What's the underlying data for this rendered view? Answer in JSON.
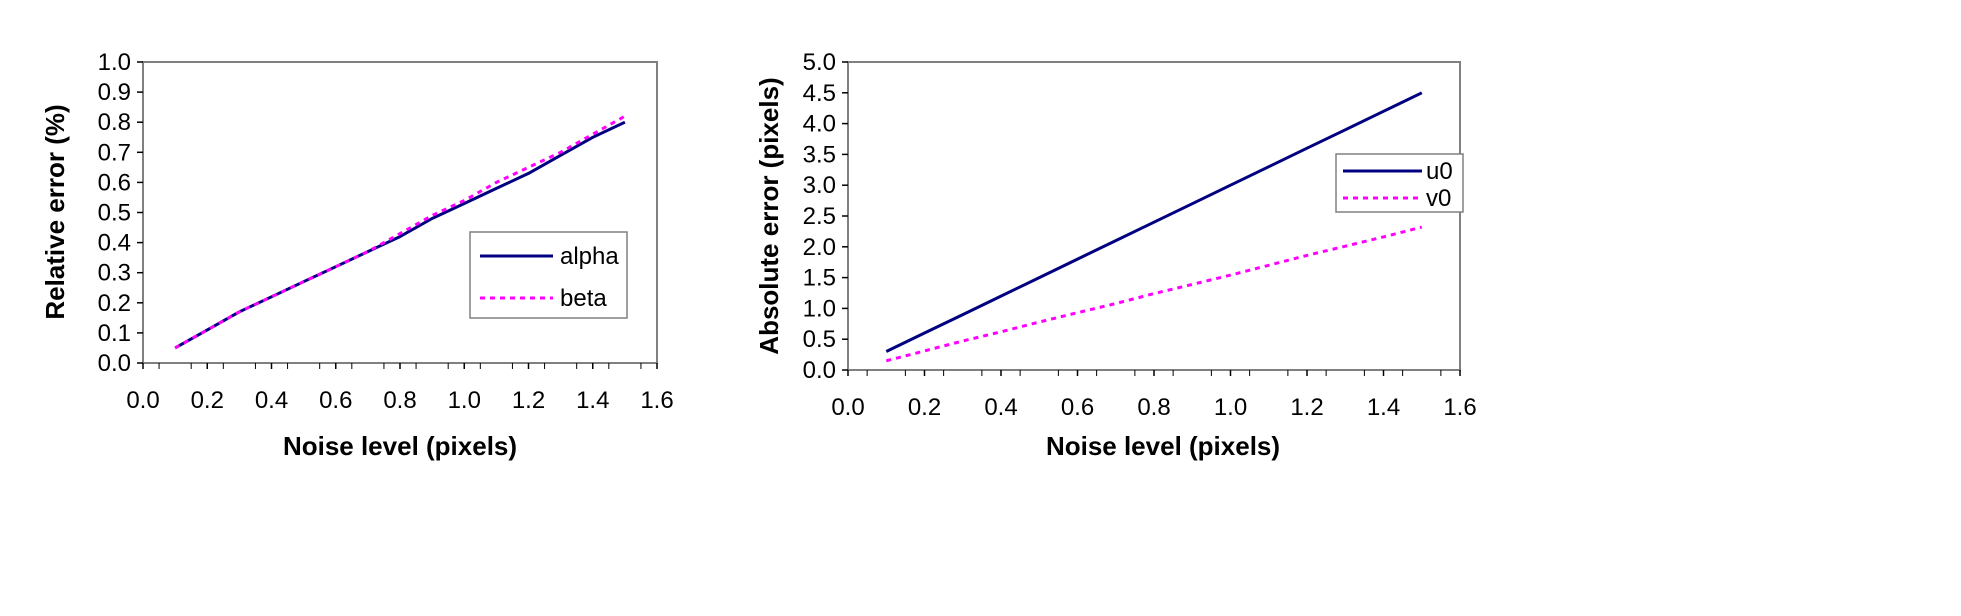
{
  "chart_data": [
    {
      "type": "line",
      "title": "",
      "xlabel": "Noise level (pixels)",
      "ylabel": "Relative error (%)",
      "xlim": [
        0.0,
        1.6
      ],
      "ylim": [
        0.0,
        1.0
      ],
      "xticks": [
        "0.0",
        "0.2",
        "0.4",
        "0.6",
        "0.8",
        "1.0",
        "1.2",
        "1.4",
        "1.6"
      ],
      "yticks": [
        "0.0",
        "0.1",
        "0.2",
        "0.3",
        "0.4",
        "0.5",
        "0.6",
        "0.7",
        "0.8",
        "0.9",
        "1.0"
      ],
      "legend_position": "right",
      "x": [
        0.1,
        0.2,
        0.3,
        0.4,
        0.5,
        0.6,
        0.7,
        0.8,
        0.9,
        1.0,
        1.1,
        1.2,
        1.3,
        1.4,
        1.5
      ],
      "series": [
        {
          "name": "alpha",
          "style": "solid",
          "color": "#000080",
          "values": [
            0.05,
            0.11,
            0.17,
            0.22,
            0.27,
            0.32,
            0.37,
            0.42,
            0.48,
            0.53,
            0.58,
            0.63,
            0.69,
            0.75,
            0.8
          ]
        },
        {
          "name": "beta",
          "style": "dashed",
          "color": "#ff00ff",
          "values": [
            0.05,
            0.11,
            0.17,
            0.22,
            0.27,
            0.32,
            0.37,
            0.43,
            0.49,
            0.54,
            0.6,
            0.65,
            0.7,
            0.76,
            0.82
          ]
        }
      ]
    },
    {
      "type": "line",
      "title": "",
      "xlabel": "Noise level (pixels)",
      "ylabel": "Absolute error (pixels)",
      "xlim": [
        0.0,
        1.6
      ],
      "ylim": [
        0.0,
        5.0
      ],
      "xticks": [
        "0.0",
        "0.2",
        "0.4",
        "0.6",
        "0.8",
        "1.0",
        "1.2",
        "1.4",
        "1.6"
      ],
      "yticks": [
        "0.0",
        "0.5",
        "1.0",
        "1.5",
        "2.0",
        "2.5",
        "3.0",
        "3.5",
        "4.0",
        "4.5",
        "5.0"
      ],
      "legend_position": "top-right",
      "x": [
        0.1,
        0.2,
        0.3,
        0.4,
        0.5,
        0.6,
        0.7,
        0.8,
        0.9,
        1.0,
        1.1,
        1.2,
        1.3,
        1.4,
        1.5
      ],
      "series": [
        {
          "name": "u0",
          "style": "solid",
          "color": "#000080",
          "values": [
            0.3,
            0.6,
            0.9,
            1.2,
            1.5,
            1.8,
            2.1,
            2.4,
            2.7,
            3.0,
            3.3,
            3.6,
            3.9,
            4.2,
            4.5
          ]
        },
        {
          "name": "v0",
          "style": "dashed",
          "color": "#ff00ff",
          "values": [
            0.15,
            0.31,
            0.47,
            0.62,
            0.78,
            0.93,
            1.08,
            1.24,
            1.39,
            1.54,
            1.7,
            1.86,
            2.01,
            2.16,
            2.32
          ]
        }
      ]
    }
  ]
}
